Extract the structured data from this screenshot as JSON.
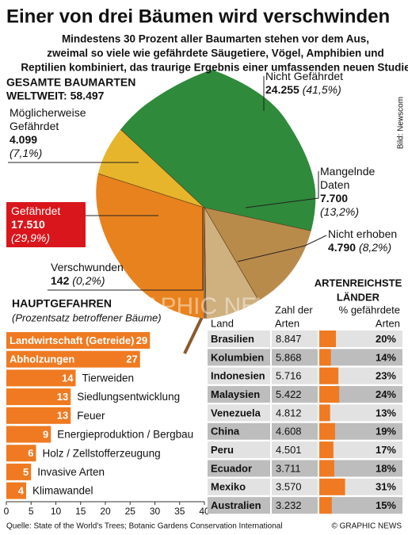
{
  "title": "Einer von drei Bäumen wird verschwinden",
  "subtitle": [
    "Mindestens 30 Prozent aller Baumarten stehen vor dem Aus,",
    "zweimal so viele wie gefährdete Säugetiere, Vögel, Amphibien und",
    "Reptilien kombiniert, das traurige Ergebnis einer umfassenden neuen Studie"
  ],
  "photo_credit": "Bild: Newscom",
  "watermark": "GRAPHIC NEWS",
  "chart_data": [
    {
      "type": "pie",
      "title": [
        "GESAMTE BAUMARTEN",
        "WELTWEIT: 58.497"
      ],
      "categories": [
        "Nicht Gefährdet",
        "Mangelnde Daten",
        "Nicht erhoben",
        "Verschwunden",
        "Gefährdet",
        "Möglicherweise Gefährdet"
      ],
      "values": [
        24255,
        7700,
        4790,
        142,
        17510,
        4099
      ],
      "value_labels": [
        "24.255",
        "7.700",
        "4.790",
        "142",
        "17.510",
        "4.099"
      ],
      "percent_labels": [
        "(41,5%)",
        "(13,2%)",
        "(8,2%)",
        "(0,2%)",
        "(29,9%)",
        "(7,1%)"
      ],
      "colors": [
        "#2f8a3b",
        "#b98b4b",
        "#cfb07f",
        "#8a8a8a",
        "#e8821e",
        "#e6b52b"
      ]
    },
    {
      "type": "bar",
      "orientation": "horizontal",
      "title": "HAUPTGEFAHREN",
      "subtitle": "(Prozentsatz betroffener Bäume)",
      "categories": [
        "Landwirtschaft (Getreide)",
        "Abholzungen",
        "Tierweiden",
        "Siedlungsentwicklung",
        "Feuer",
        "Energieproduktion / Bergbau",
        "Holz / Zellstofferzeugung",
        "Invasive Arten",
        "Klimawandel"
      ],
      "values": [
        29,
        27,
        14,
        13,
        13,
        9,
        6,
        5,
        4
      ],
      "color": "#ef7a21",
      "xlim": [
        0,
        40
      ],
      "xticks": [
        0,
        5,
        10,
        15,
        20,
        25,
        30,
        35,
        40
      ]
    },
    {
      "type": "table",
      "title": [
        "ARTENREICHSTE",
        "LÄNDER"
      ],
      "columns": [
        [
          "Land"
        ],
        [
          "Zahl der",
          "Arten"
        ],
        [
          "% gefährdete",
          "Arten"
        ]
      ],
      "categories": [
        "Brasilien",
        "Kolumbien",
        "Indonesien",
        "Malaysien",
        "Venezuela",
        "China",
        "Peru",
        "Ecuador",
        "Mexiko",
        "Australien"
      ],
      "species": [
        "8.847",
        "5.868",
        "5.716",
        "5.422",
        "4.812",
        "4.608",
        "4.501",
        "3.711",
        "3.570",
        "3.232"
      ],
      "values": [
        20,
        14,
        23,
        24,
        13,
        19,
        17,
        18,
        31,
        15
      ],
      "value_labels": [
        "20%",
        "14%",
        "23%",
        "24%",
        "13%",
        "19%",
        "17%",
        "18%",
        "31%",
        "15%"
      ],
      "color": "#ef7a21"
    }
  ],
  "footer": {
    "source": "Quelle: State of the World's Trees; Botanic Gardens Conservation International",
    "copyright": "© GRAPHIC NEWS"
  }
}
